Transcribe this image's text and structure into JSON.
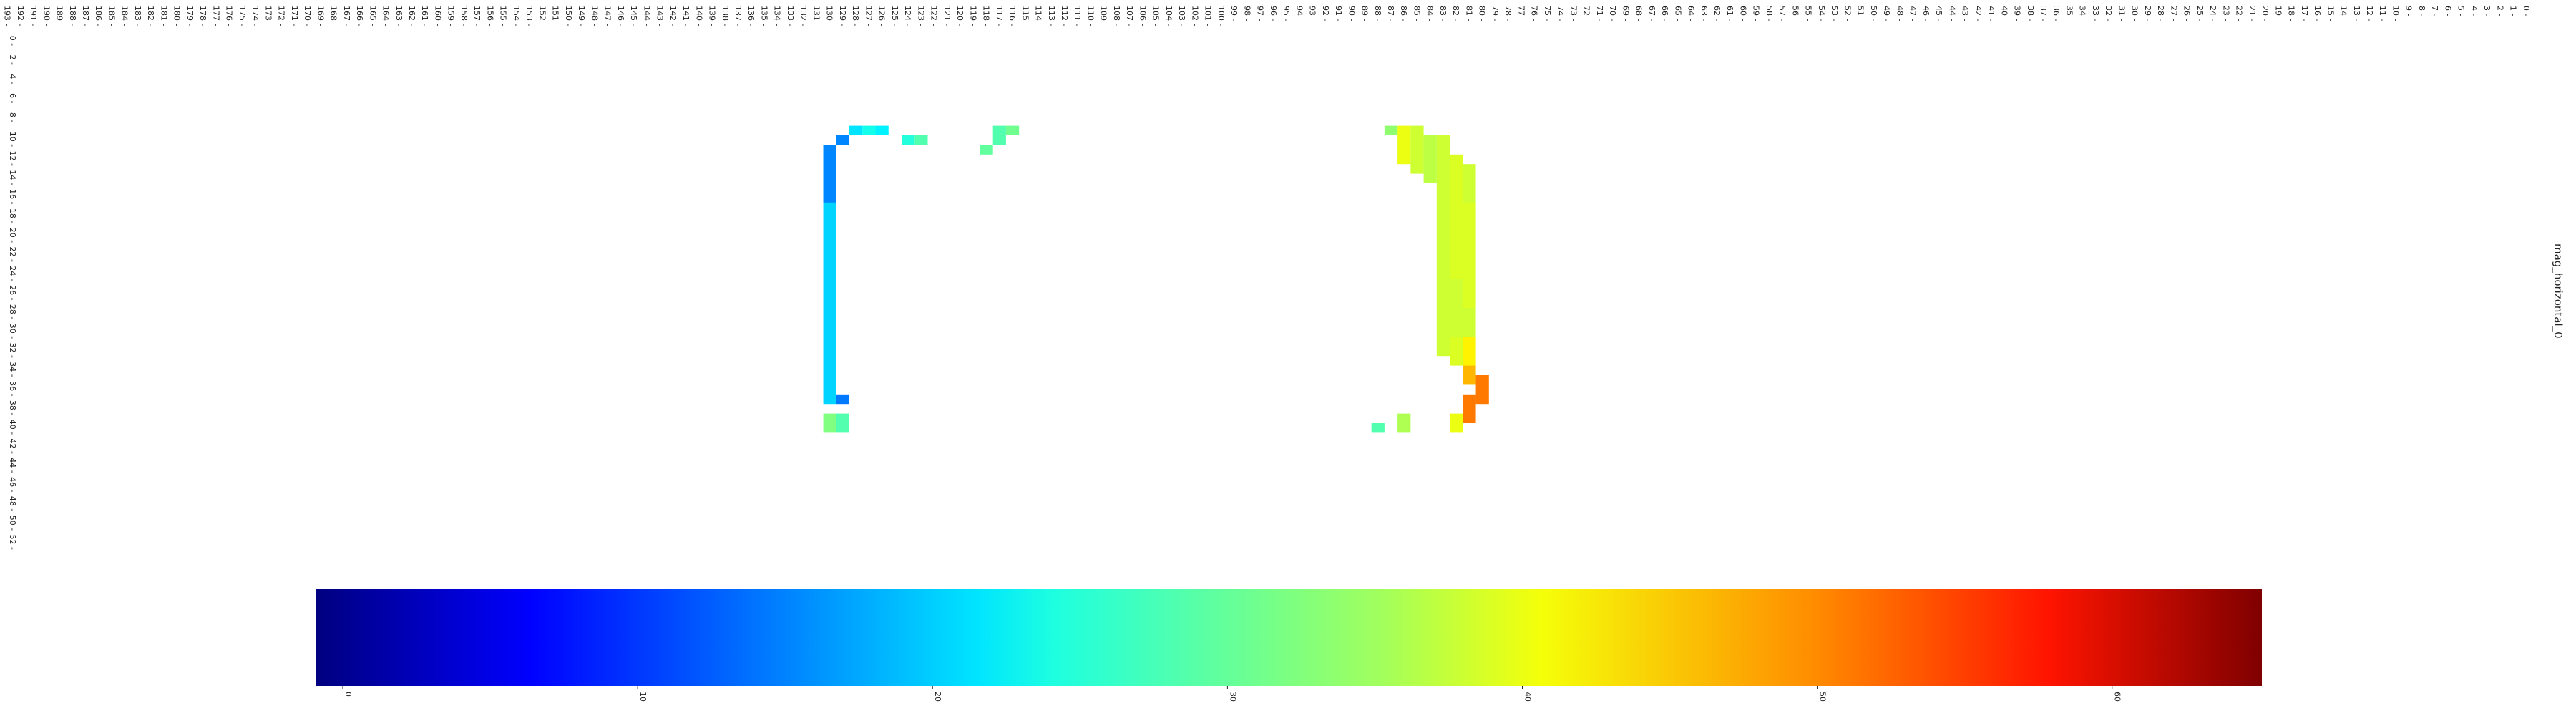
{
  "chart_data": {
    "type": "heatmap",
    "series_name": "mag_horizontal_0",
    "orientation": "rotated-90-clockwise",
    "x_axis": {
      "tick_labels_range": [
        0,
        193
      ],
      "tick_step": 1
    },
    "y_axis": {
      "tick_labels_range": [
        0,
        52
      ],
      "tick_step": 2
    },
    "colormap": "jet",
    "colorbar": {
      "ticks": [
        0,
        10,
        20,
        30,
        40,
        50,
        60
      ],
      "range": [
        0,
        66
      ]
    },
    "grid": false,
    "legend": "colorbar-bottom",
    "cells": [
      {
        "c": 86,
        "r0": 9,
        "r1": 13,
        "v": 40
      },
      {
        "c": 85,
        "r0": 9,
        "r1": 14,
        "v": 38
      },
      {
        "c": 84,
        "r0": 10,
        "r1": 15,
        "v": 37
      },
      {
        "c": 83,
        "r0": 10,
        "r1": 33,
        "v": 38
      },
      {
        "c": 82,
        "r0": 12,
        "r1": 34,
        "v": 39
      },
      {
        "c": 81,
        "r0": 13,
        "r1": 36,
        "v": 38
      },
      {
        "c": 81,
        "r0": 17,
        "r1": 28,
        "v": 39
      },
      {
        "c": 82,
        "r0": 25,
        "r1": 31,
        "v": 38
      },
      {
        "c": 81,
        "r0": 31,
        "r1": 34,
        "v": 42
      },
      {
        "c": 81,
        "r0": 34,
        "r1": 36,
        "v": 46
      },
      {
        "c": 80,
        "r0": 35,
        "r1": 38,
        "v": 50
      },
      {
        "c": 81,
        "r0": 37,
        "r1": 40,
        "v": 50
      },
      {
        "c": 82,
        "r0": 39,
        "r1": 41,
        "v": 40
      },
      {
        "c": 87,
        "r0": 9,
        "r1": 10,
        "v": 34
      },
      {
        "c": 116,
        "r0": 9,
        "r1": 10,
        "v": 32
      },
      {
        "c": 117,
        "r0": 9,
        "r1": 11,
        "v": 30
      },
      {
        "c": 118,
        "r0": 11,
        "r1": 12,
        "v": 31
      },
      {
        "c": 123,
        "r0": 10,
        "r1": 11,
        "v": 30
      },
      {
        "c": 124,
        "r0": 10,
        "r1": 11,
        "v": 27
      },
      {
        "c": 126,
        "r0": 9,
        "r1": 10,
        "v": 24
      },
      {
        "c": 127,
        "r0": 9,
        "r1": 10,
        "v": 26
      },
      {
        "c": 128,
        "r0": 9,
        "r1": 10,
        "v": 23
      },
      {
        "c": 129,
        "r0": 10,
        "r1": 11,
        "v": 17
      },
      {
        "c": 130,
        "r0": 11,
        "r1": 38,
        "v": 22
      },
      {
        "c": 130,
        "r0": 11,
        "r1": 17,
        "v": 17
      },
      {
        "c": 129,
        "r0": 37,
        "r1": 38,
        "v": 16
      },
      {
        "c": 130,
        "r0": 39,
        "r1": 41,
        "v": 33
      },
      {
        "c": 129,
        "r0": 39,
        "r1": 41,
        "v": 30
      },
      {
        "c": 86,
        "r0": 39,
        "r1": 41,
        "v": 36
      },
      {
        "c": 88,
        "r0": 40,
        "r1": 41,
        "v": 30
      }
    ]
  },
  "colors": {
    "background": "#ffffff",
    "text": "#222222"
  }
}
